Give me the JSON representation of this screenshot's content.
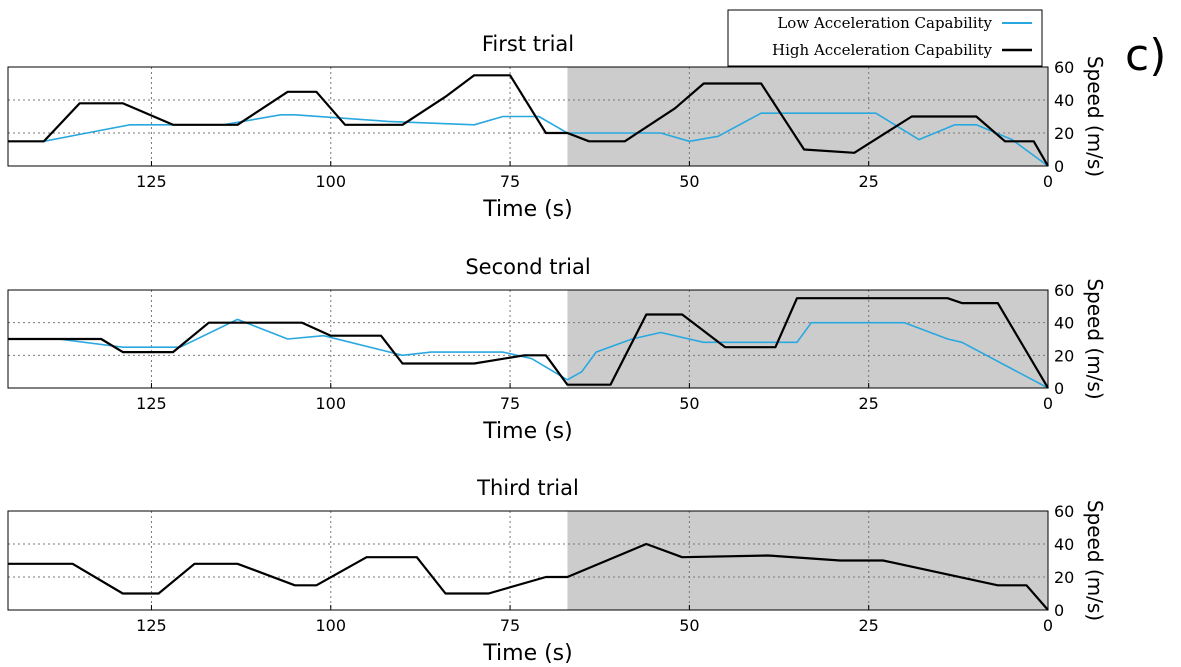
{
  "panel_label": "c)",
  "legend": {
    "entries": [
      {
        "label": "Low Acceleration Capability",
        "color": "#29a8e0"
      },
      {
        "label": "High Acceleration Capability",
        "color": "#000000"
      }
    ]
  },
  "shaded_region": {
    "x": [
      0,
      67
    ],
    "color": "#cccccc"
  },
  "chart_data": [
    {
      "type": "line",
      "title": "First trial",
      "xlabel": "Time (s)",
      "ylabel": "Speed (m/s)",
      "xlim": [
        0,
        145
      ],
      "ylim": [
        0,
        60
      ],
      "x_reversed": true,
      "y_axis_side": "right",
      "xticks": [
        0,
        25,
        50,
        75,
        100,
        125
      ],
      "yticks": [
        0,
        20,
        40,
        60
      ],
      "grid": true,
      "series": [
        {
          "name": "Low Acceleration Capability",
          "color": "#29a8e0",
          "x": [
            0,
            5,
            10,
            13,
            18,
            24,
            40,
            46,
            50,
            54,
            67,
            71,
            76,
            80,
            92,
            105,
            107,
            115,
            121,
            128,
            134,
            140,
            145
          ],
          "y": [
            0,
            16,
            25,
            25,
            16,
            32,
            32,
            18,
            15,
            20,
            20,
            30,
            30,
            25,
            27,
            31,
            31,
            25,
            25,
            25,
            20,
            15,
            15
          ]
        },
        {
          "name": "High Acceleration Capability",
          "color": "#000000",
          "x": [
            0,
            2,
            6,
            10,
            19,
            27,
            34,
            40,
            48,
            52,
            59,
            64,
            67,
            70,
            75,
            80,
            84,
            90,
            96,
            98,
            102,
            106,
            113,
            118,
            122,
            129,
            135,
            140,
            145
          ],
          "y": [
            0,
            15,
            15,
            30,
            30,
            8,
            10,
            50,
            50,
            35,
            15,
            15,
            20,
            20,
            55,
            55,
            42,
            25,
            25,
            25,
            45,
            45,
            25,
            25,
            25,
            38,
            38,
            15,
            15
          ]
        }
      ]
    },
    {
      "type": "line",
      "title": "Second trial",
      "xlabel": "Time (s)",
      "ylabel": "Speed (m/s)",
      "xlim": [
        0,
        145
      ],
      "ylim": [
        0,
        60
      ],
      "x_reversed": true,
      "y_axis_side": "right",
      "xticks": [
        0,
        25,
        50,
        75,
        100,
        125
      ],
      "yticks": [
        0,
        20,
        40,
        60
      ],
      "grid": true,
      "series": [
        {
          "name": "Low Acceleration Capability",
          "color": "#29a8e0",
          "x": [
            0,
            12,
            14,
            20,
            33,
            35,
            48,
            54,
            58,
            63,
            65,
            67,
            72,
            76,
            86,
            90,
            101,
            106,
            113,
            121,
            129,
            138,
            145
          ],
          "y": [
            0,
            28,
            30,
            40,
            40,
            28,
            28,
            34,
            30,
            22,
            10,
            5,
            18,
            22,
            22,
            20,
            32,
            30,
            42,
            25,
            25,
            30,
            30
          ]
        },
        {
          "name": "High Acceleration Capability",
          "color": "#000000",
          "x": [
            0,
            7,
            12,
            14,
            24,
            27,
            35,
            38,
            45,
            51,
            56,
            61,
            66,
            67,
            70,
            73,
            80,
            84,
            90,
            93,
            100,
            104,
            112,
            117,
            122,
            129,
            132,
            138,
            145
          ],
          "y": [
            0,
            52,
            52,
            55,
            55,
            55,
            55,
            25,
            25,
            45,
            45,
            2,
            2,
            2,
            20,
            20,
            15,
            15,
            15,
            32,
            32,
            40,
            40,
            40,
            22,
            22,
            30,
            30,
            30
          ]
        }
      ]
    },
    {
      "type": "line",
      "title": "Third trial",
      "xlabel": "Time (s)",
      "ylabel": "Speed (m/s)",
      "xlim": [
        0,
        145
      ],
      "ylim": [
        0,
        60
      ],
      "x_reversed": true,
      "y_axis_side": "right",
      "xticks": [
        0,
        25,
        50,
        75,
        100,
        125
      ],
      "yticks": [
        0,
        20,
        40,
        60
      ],
      "grid": true,
      "series": [
        {
          "name": "High Acceleration Capability",
          "color": "#000000",
          "x": [
            0,
            3,
            7,
            23,
            29,
            39,
            51,
            56,
            67,
            70,
            78,
            84,
            88,
            95,
            102,
            105,
            113,
            119,
            124,
            129,
            136,
            142,
            145
          ],
          "y": [
            0,
            15,
            15,
            30,
            30,
            33,
            32,
            40,
            20,
            20,
            10,
            10,
            32,
            32,
            15,
            15,
            28,
            28,
            10,
            10,
            28,
            28,
            28
          ]
        }
      ]
    }
  ]
}
